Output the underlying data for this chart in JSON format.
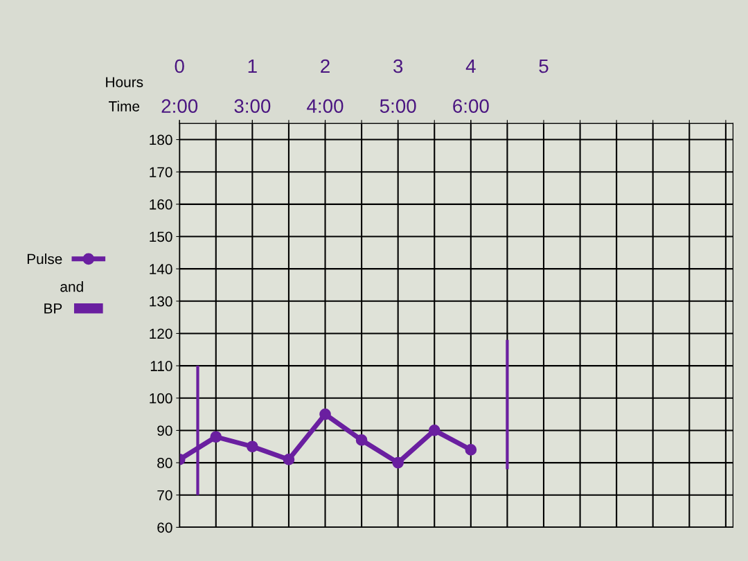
{
  "chart_data": {
    "type": "line",
    "xlabel": "Hours",
    "x2label": "Time",
    "xlim": [
      0,
      7.6
    ],
    "xticks": [
      0,
      {
        "value": 0.5,
        "label": null
      },
      1,
      {
        "value": 1.5,
        "label": null
      },
      2,
      {
        "value": 2.5,
        "label": null
      },
      3,
      {
        "value": 3.5,
        "label": null
      },
      4,
      {
        "value": 4.5,
        "label": null
      },
      5,
      {
        "value": 5.5,
        "label": null
      },
      {
        "value": 6,
        "label": null
      },
      {
        "value": 6.5,
        "label": null
      },
      {
        "value": 7,
        "label": null
      },
      {
        "value": 7.5,
        "label": null
      }
    ],
    "x2lim": [
      2,
      9.6
    ],
    "x2ticks": [
      {
        "value": 2,
        "label": "2:00"
      },
      {
        "value": 3,
        "label": "3:00"
      },
      {
        "value": 4,
        "label": "4:00"
      },
      {
        "value": 5,
        "label": "5:00"
      },
      {
        "value": 6,
        "label": "6:00"
      }
    ],
    "ylim": [
      60,
      185
    ],
    "yticks": [
      60,
      70,
      80,
      90,
      100,
      110,
      120,
      130,
      140,
      150,
      160,
      170,
      180
    ],
    "grid": true,
    "legend": "left",
    "marker": "circle",
    "line_style": "solid",
    "annotations": [
      "and"
    ],
    "series": [
      {
        "name": "Pulse",
        "color": "#6a1fa0",
        "x": [
          0,
          0.5,
          1,
          1.5,
          2,
          2.5,
          3,
          3.5,
          4
        ],
        "values": [
          81,
          88,
          85,
          81,
          95,
          87,
          80,
          90,
          84
        ]
      },
      {
        "name": "BP",
        "type": "bar",
        "color": "#6a1fa0",
        "x": [
          0.25,
          4.5
        ],
        "base": [
          70,
          78
        ],
        "values": [
          40,
          40
        ]
      }
    ]
  }
}
